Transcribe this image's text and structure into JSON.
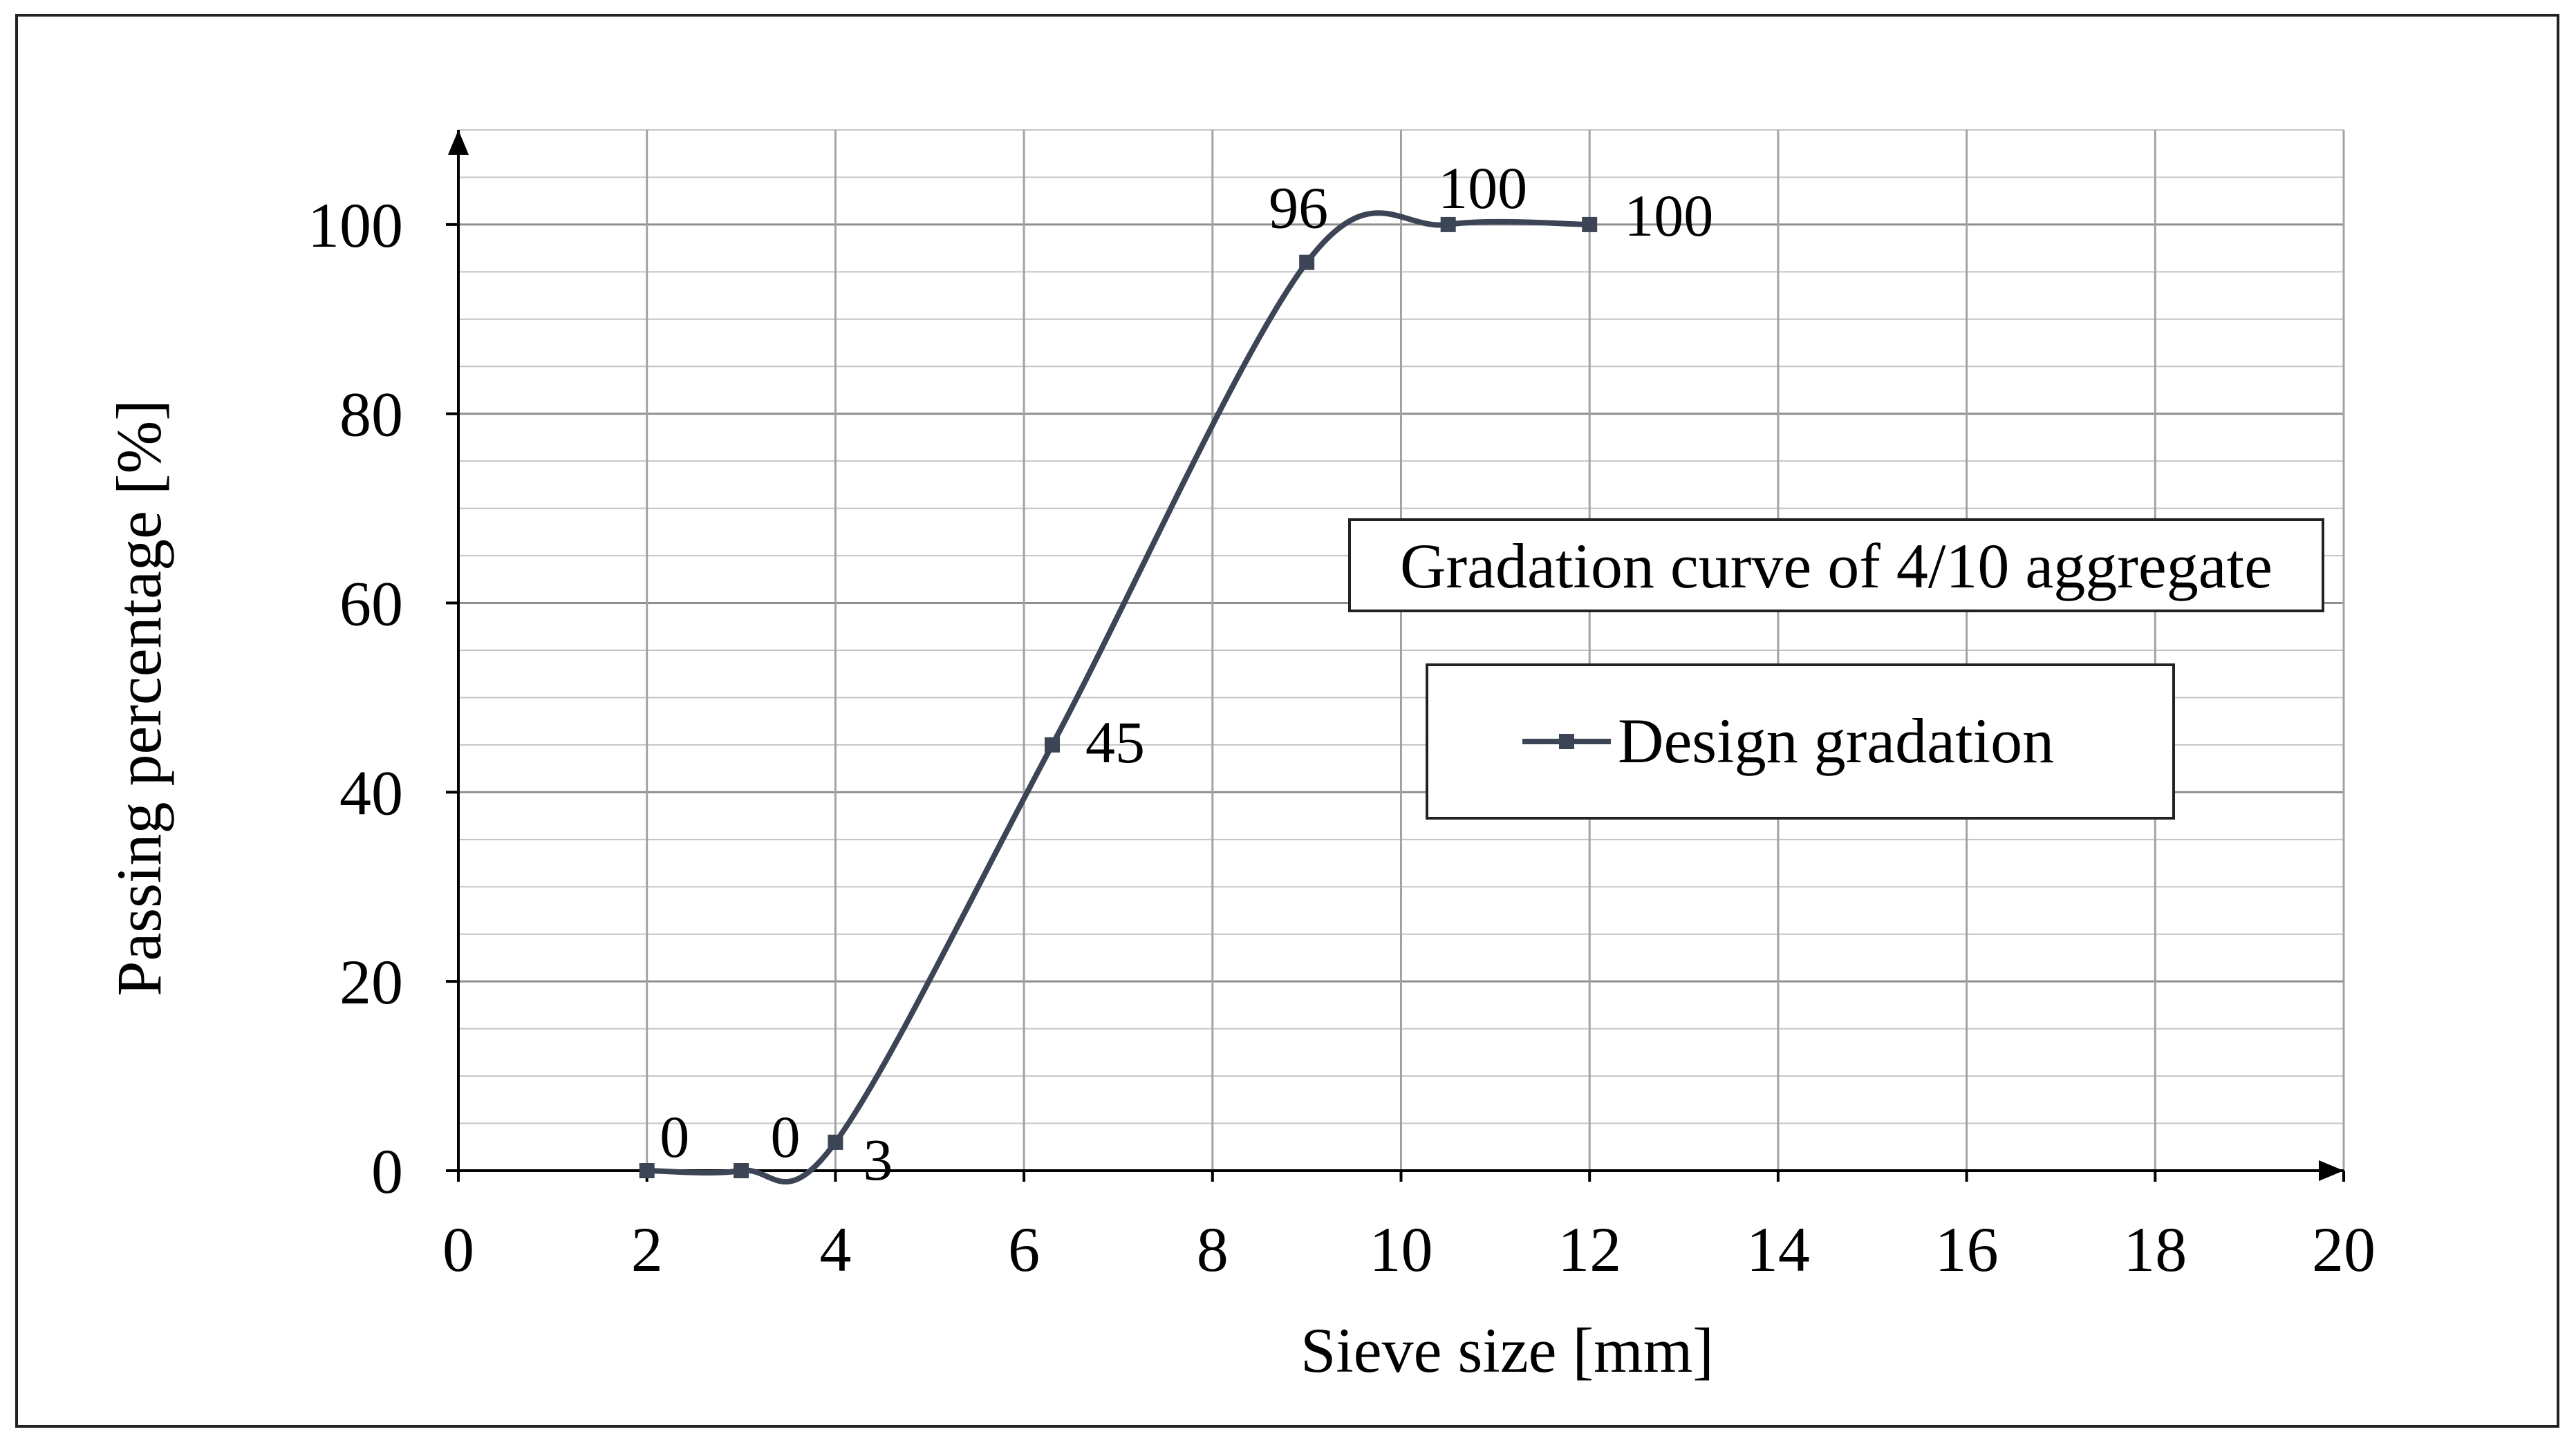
{
  "chart_data": {
    "type": "line",
    "title": "Gradation curve of 4/10 aggregate",
    "xlabel": "Sieve size [mm]",
    "ylabel": "Passing percentage [%]",
    "xlim": [
      0,
      20
    ],
    "ylim": [
      0,
      110
    ],
    "x_ticks": [
      0,
      2,
      4,
      6,
      8,
      10,
      12,
      14,
      16,
      18,
      20
    ],
    "y_ticks": [
      0,
      20,
      40,
      60,
      80,
      100
    ],
    "x_minor_step": 2,
    "y_minor_step": 5,
    "grid": true,
    "legend_position": "center-right",
    "series": [
      {
        "name": "Design gradation",
        "color": "#3b4556",
        "x": [
          2,
          3,
          4,
          6.3,
          9,
          10.5,
          12
        ],
        "values": [
          0,
          0,
          3,
          45,
          96,
          100,
          100
        ],
        "data_labels": [
          "0",
          "0",
          "3",
          "45",
          "96",
          "100",
          "100"
        ]
      }
    ]
  }
}
